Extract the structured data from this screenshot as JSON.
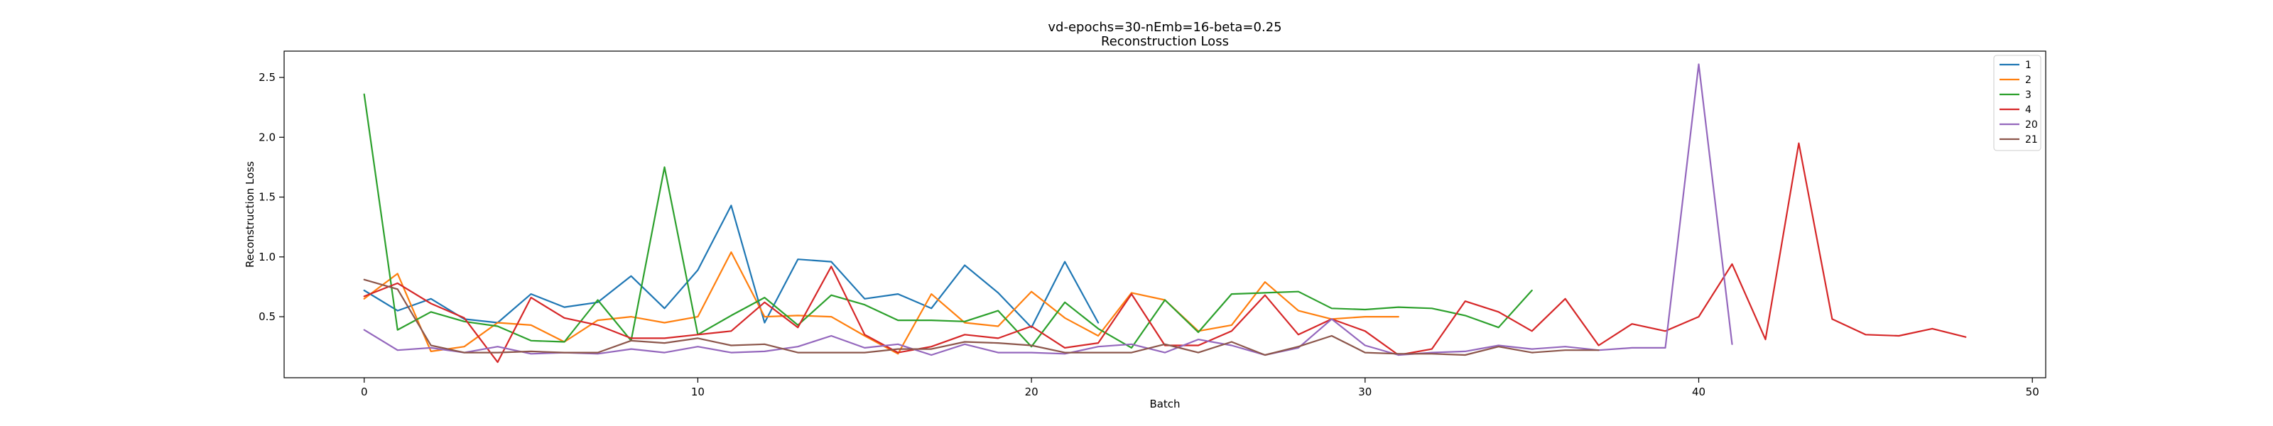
{
  "chart_data": {
    "type": "line",
    "title": "vd-epochs=30-nEmb=16-beta=0.25",
    "subtitle": "Reconstruction Loss",
    "xlabel": "Batch",
    "ylabel": "Reconstruction Loss",
    "xlim": [
      -2.4,
      50.4
    ],
    "ylim": [
      -0.01,
      2.72
    ],
    "xticks": [
      0,
      10,
      20,
      30,
      40,
      50
    ],
    "yticks": [
      0.5,
      1.0,
      1.5,
      2.0,
      2.5
    ],
    "xtick_labels": [
      "0",
      "10",
      "20",
      "30",
      "40",
      "50"
    ],
    "ytick_labels": [
      "0.5",
      "1.0",
      "1.5",
      "2.0",
      "2.5"
    ],
    "grid": false,
    "legend_position": "top-right",
    "series": [
      {
        "name": "1",
        "color": "#1f77b4",
        "x": [
          0,
          1,
          2,
          3,
          4,
          5,
          6,
          7,
          8,
          9,
          10,
          11,
          12,
          13,
          14,
          15,
          16,
          17,
          18,
          19,
          20,
          21,
          22
        ],
        "y": [
          0.72,
          0.55,
          0.65,
          0.48,
          0.45,
          0.69,
          0.58,
          0.62,
          0.84,
          0.57,
          0.89,
          1.43,
          0.45,
          0.98,
          0.96,
          0.65,
          0.69,
          0.57,
          0.93,
          0.7,
          0.41,
          0.96,
          0.45
        ]
      },
      {
        "name": "2",
        "color": "#ff7f0e",
        "x": [
          0,
          1,
          2,
          3,
          4,
          5,
          6,
          7,
          8,
          9,
          10,
          11,
          12,
          13,
          14,
          15,
          16,
          17,
          18,
          19,
          20,
          21,
          22,
          23,
          24,
          25,
          26,
          27,
          28,
          29,
          30,
          31
        ],
        "y": [
          0.65,
          0.86,
          0.21,
          0.25,
          0.45,
          0.43,
          0.29,
          0.47,
          0.5,
          0.45,
          0.5,
          1.04,
          0.5,
          0.51,
          0.5,
          0.34,
          0.19,
          0.69,
          0.45,
          0.42,
          0.71,
          0.49,
          0.34,
          0.7,
          0.64,
          0.38,
          0.43,
          0.79,
          0.55,
          0.48,
          0.5,
          0.5
        ]
      },
      {
        "name": "3",
        "color": "#2ca02c",
        "x": [
          0,
          1,
          2,
          3,
          4,
          5,
          6,
          7,
          8,
          9,
          10,
          11,
          12,
          13,
          14,
          15,
          16,
          17,
          18,
          19,
          20,
          21,
          22,
          23,
          24,
          25,
          26,
          27,
          28,
          29,
          30,
          31,
          32,
          33,
          34,
          35
        ],
        "y": [
          2.36,
          0.39,
          0.54,
          0.46,
          0.42,
          0.3,
          0.29,
          0.64,
          0.3,
          1.75,
          0.35,
          0.51,
          0.66,
          0.43,
          0.68,
          0.6,
          0.47,
          0.47,
          0.46,
          0.55,
          0.25,
          0.62,
          0.4,
          0.24,
          0.64,
          0.37,
          0.69,
          0.7,
          0.71,
          0.57,
          0.56,
          0.58,
          0.57,
          0.51,
          0.41,
          0.72
        ]
      },
      {
        "name": "4",
        "color": "#d62728",
        "x": [
          0,
          1,
          2,
          3,
          4,
          5,
          6,
          7,
          8,
          9,
          10,
          11,
          12,
          13,
          14,
          15,
          16,
          17,
          18,
          19,
          20,
          21,
          22,
          23,
          24,
          25,
          26,
          27,
          28,
          29,
          30,
          31,
          32,
          33,
          34,
          35,
          36,
          37,
          38,
          39,
          40,
          41,
          42,
          43,
          44,
          45,
          46,
          47,
          48
        ],
        "y": [
          0.67,
          0.78,
          0.61,
          0.49,
          0.12,
          0.66,
          0.49,
          0.43,
          0.32,
          0.32,
          0.35,
          0.38,
          0.62,
          0.41,
          0.92,
          0.35,
          0.2,
          0.25,
          0.35,
          0.32,
          0.42,
          0.24,
          0.28,
          0.69,
          0.26,
          0.26,
          0.38,
          0.68,
          0.35,
          0.48,
          0.38,
          0.18,
          0.23,
          0.63,
          0.54,
          0.38,
          0.65,
          0.26,
          0.44,
          0.38,
          0.5,
          0.94,
          0.31,
          1.95,
          0.48,
          0.35,
          0.34,
          0.4,
          0.33
        ]
      },
      {
        "name": "20",
        "color": "#9467bd",
        "x": [
          0,
          1,
          2,
          3,
          4,
          5,
          6,
          7,
          8,
          9,
          10,
          11,
          12,
          13,
          14,
          15,
          16,
          17,
          18,
          19,
          20,
          21,
          22,
          23,
          24,
          25,
          26,
          27,
          28,
          29,
          30,
          31,
          32,
          33,
          34,
          35,
          36,
          37,
          38,
          39,
          40,
          41
        ],
        "y": [
          0.39,
          0.22,
          0.24,
          0.2,
          0.25,
          0.19,
          0.2,
          0.19,
          0.23,
          0.2,
          0.25,
          0.2,
          0.21,
          0.25,
          0.34,
          0.24,
          0.27,
          0.18,
          0.27,
          0.2,
          0.2,
          0.19,
          0.25,
          0.27,
          0.2,
          0.31,
          0.26,
          0.18,
          0.24,
          0.48,
          0.26,
          0.18,
          0.2,
          0.21,
          0.26,
          0.23,
          0.25,
          0.22,
          0.24,
          0.24,
          2.61,
          0.27
        ]
      },
      {
        "name": "21",
        "color": "#8c564b",
        "x": [
          0,
          1,
          2,
          3,
          4,
          5,
          6,
          7,
          8,
          9,
          10,
          11,
          12,
          13,
          14,
          15,
          16,
          17,
          18,
          19,
          20,
          21,
          22,
          23,
          24,
          25,
          26,
          27,
          28,
          29,
          30,
          31,
          32,
          33,
          34,
          35,
          36,
          37
        ],
        "y": [
          0.81,
          0.73,
          0.26,
          0.2,
          0.2,
          0.21,
          0.2,
          0.2,
          0.3,
          0.28,
          0.32,
          0.26,
          0.27,
          0.2,
          0.2,
          0.2,
          0.23,
          0.23,
          0.29,
          0.28,
          0.26,
          0.2,
          0.2,
          0.2,
          0.27,
          0.2,
          0.29,
          0.18,
          0.25,
          0.34,
          0.2,
          0.19,
          0.19,
          0.18,
          0.25,
          0.2,
          0.22,
          0.22
        ]
      }
    ]
  }
}
